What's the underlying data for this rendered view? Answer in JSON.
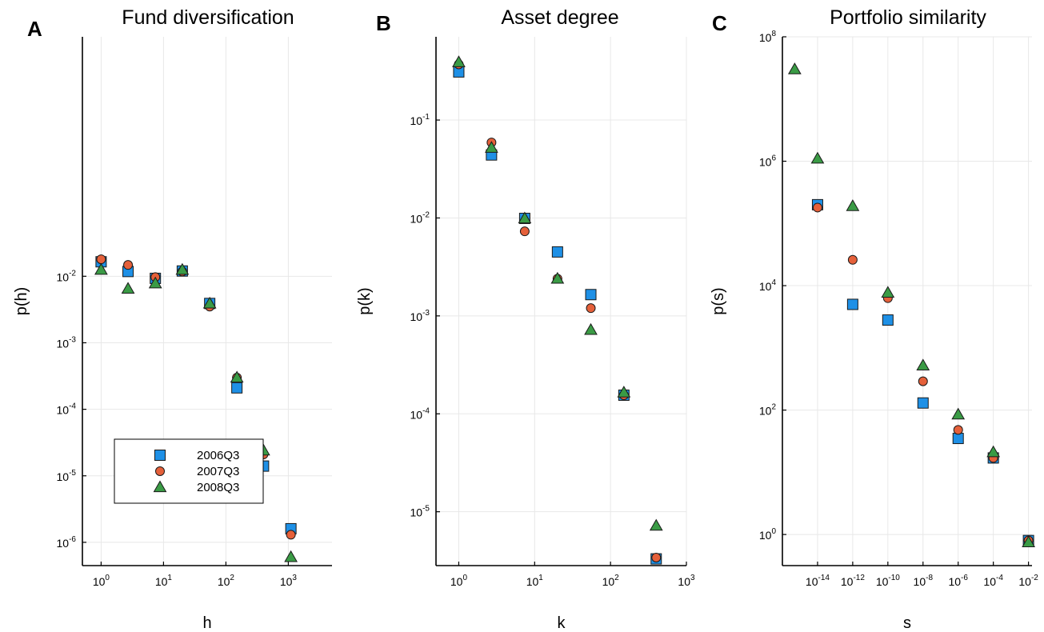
{
  "chart_data": [
    {
      "type": "scatter",
      "letter": "A",
      "title": "Fund diversification",
      "xlabel": "h",
      "ylabel": "p(h)",
      "xscale": "log",
      "yscale": "log",
      "xlim_log10": [
        -0.3,
        3.7
      ],
      "ylim_log10": [
        -6.35,
        1.6
      ],
      "x_ticks": [
        {
          "base": "10",
          "exp": "0",
          "v": 0
        },
        {
          "base": "10",
          "exp": "1",
          "v": 1
        },
        {
          "base": "10",
          "exp": "2",
          "v": 2
        },
        {
          "base": "10",
          "exp": "3",
          "v": 3
        }
      ],
      "y_ticks": [
        {
          "base": "10",
          "exp": "-6",
          "v": -6
        },
        {
          "base": "10",
          "exp": "-5",
          "v": -5
        },
        {
          "base": "10",
          "exp": "-4",
          "v": -4
        },
        {
          "base": "10",
          "exp": "-3",
          "v": -3
        },
        {
          "base": "10",
          "exp": "-2",
          "v": -2
        }
      ],
      "grid": true,
      "legend": "bottom-left",
      "series": [
        {
          "name": "2006Q3",
          "marker": "square",
          "color": "#1e90e6",
          "x": [
            1,
            2.7,
            7.4,
            20,
            55,
            150,
            400,
            1100
          ],
          "y": [
            0.0165,
            0.0118,
            0.0093,
            0.012,
            0.0039,
            0.00021,
            1.4e-05,
            1.6e-06
          ]
        },
        {
          "name": "2007Q3",
          "marker": "circle",
          "color": "#e5603a",
          "x": [
            1,
            2.7,
            7.4,
            20,
            55,
            150,
            400,
            1100
          ],
          "y": [
            0.018,
            0.0148,
            0.0097,
            0.0118,
            0.0035,
            0.0003,
            2.1e-05,
            1.3e-06
          ]
        },
        {
          "name": "2008Q3",
          "marker": "triangle",
          "color": "#3a9b45",
          "x": [
            1,
            2.7,
            7.4,
            20,
            55,
            150,
            400,
            1100
          ],
          "y": [
            0.0125,
            0.0065,
            0.0078,
            0.0125,
            0.0039,
            0.0003,
            2.4e-05,
            6e-07
          ]
        }
      ]
    },
    {
      "type": "scatter",
      "letter": "B",
      "title": "Asset degree",
      "xlabel": "k",
      "ylabel": "p(k)",
      "xscale": "log",
      "yscale": "log",
      "xlim_log10": [
        -0.3,
        3.0
      ],
      "ylim_log10": [
        -5.55,
        -0.15
      ],
      "x_ticks": [
        {
          "base": "10",
          "exp": "0",
          "v": 0
        },
        {
          "base": "10",
          "exp": "1",
          "v": 1
        },
        {
          "base": "10",
          "exp": "2",
          "v": 2
        },
        {
          "base": "10",
          "exp": "3",
          "v": 3
        }
      ],
      "y_ticks": [
        {
          "base": "10",
          "exp": "-5",
          "v": -5
        },
        {
          "base": "10",
          "exp": "-4",
          "v": -4
        },
        {
          "base": "10",
          "exp": "-3",
          "v": -3
        },
        {
          "base": "10",
          "exp": "-2",
          "v": -2
        },
        {
          "base": "10",
          "exp": "-1",
          "v": -1
        }
      ],
      "grid": true,
      "legend": "none",
      "series": [
        {
          "name": "2006Q3",
          "marker": "square",
          "color": "#1e90e6",
          "x": [
            1,
            2.7,
            7.4,
            20,
            55,
            150,
            400
          ],
          "y": [
            0.31,
            0.044,
            0.0099,
            0.0045,
            0.00165,
            0.000155,
            3.3e-06
          ]
        },
        {
          "name": "2007Q3",
          "marker": "circle",
          "color": "#e5603a",
          "x": [
            1,
            2.7,
            7.4,
            20,
            55,
            150,
            400
          ],
          "y": [
            0.37,
            0.059,
            0.0073,
            0.0024,
            0.0012,
            0.000155,
            3.4e-06
          ]
        },
        {
          "name": "2008Q3",
          "marker": "triangle",
          "color": "#3a9b45",
          "x": [
            1,
            2.7,
            7.4,
            20,
            55,
            150,
            400
          ],
          "y": [
            0.39,
            0.052,
            0.0099,
            0.0024,
            0.00072,
            0.000165,
            7.2e-06
          ]
        }
      ]
    },
    {
      "type": "scatter",
      "letter": "C",
      "title": "Portfolio similarity",
      "xlabel": "s",
      "ylabel": "p(s)",
      "xscale": "log",
      "yscale": "log",
      "xlim_log10": [
        -16.0,
        -1.8
      ],
      "ylim_log10": [
        -0.5,
        8.0
      ],
      "x_ticks": [
        {
          "base": "10",
          "exp": "-14",
          "v": -14
        },
        {
          "base": "10",
          "exp": "-12",
          "v": -12
        },
        {
          "base": "10",
          "exp": "-10",
          "v": -10
        },
        {
          "base": "10",
          "exp": "-8",
          "v": -8
        },
        {
          "base": "10",
          "exp": "-6",
          "v": -6
        },
        {
          "base": "10",
          "exp": "-4",
          "v": -4
        },
        {
          "base": "10",
          "exp": "-2",
          "v": -2
        }
      ],
      "y_ticks": [
        {
          "base": "10",
          "exp": "0",
          "v": 0
        },
        {
          "base": "10",
          "exp": "2",
          "v": 2
        },
        {
          "base": "10",
          "exp": "4",
          "v": 4
        },
        {
          "base": "10",
          "exp": "6",
          "v": 6
        },
        {
          "base": "10",
          "exp": "8",
          "v": 8
        }
      ],
      "grid": true,
      "legend": "none",
      "series": [
        {
          "name": "2006Q3",
          "marker": "square",
          "color": "#1e90e6",
          "x": [
            1e-14,
            1e-12,
            1e-10,
            1e-08,
            1e-06,
            0.0001,
            0.01
          ],
          "y": [
            200000,
            5000,
            2800,
            130,
            35,
            17,
            0.8
          ]
        },
        {
          "name": "2007Q3",
          "marker": "circle",
          "color": "#e5603a",
          "x": [
            1e-14,
            1e-12,
            1e-10,
            1e-08,
            1e-06,
            0.0001,
            0.01
          ],
          "y": [
            180000,
            26000,
            6300,
            290,
            48,
            17,
            0.8
          ]
        },
        {
          "name": "2008Q3",
          "marker": "triangle",
          "color": "#3a9b45",
          "x": [
            5e-16,
            1e-14,
            1e-12,
            1e-10,
            1e-08,
            1e-06,
            0.0001,
            0.01
          ],
          "y": [
            30000000,
            1100000,
            190000,
            7700,
            520,
            85,
            21,
            0.75
          ]
        }
      ]
    }
  ]
}
